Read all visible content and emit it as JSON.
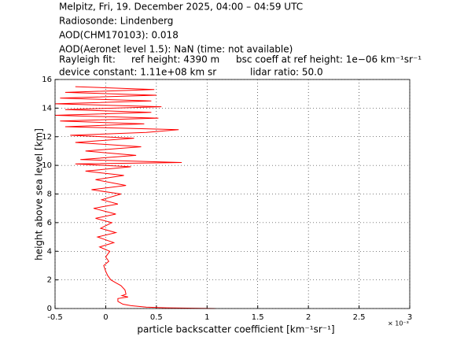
{
  "chart_data": {
    "type": "line",
    "header": [
      "Melpitz, Fri, 19. December 2025, 04:00 – 04:59 UTC",
      "Radiosonde: Lindenberg",
      "AOD(CHM170103): 0.018",
      "AOD(Aeronet level 1.5): NaN   (time: not available)"
    ],
    "rayleigh": [
      "Rayleigh fit:",
      "ref height: 4390 m",
      "bsc coeff at ref height: 1e−06 km⁻¹sr⁻¹"
    ],
    "device": [
      "device constant: 1.11e+08 km sr",
      "lidar ratio: 50.0"
    ],
    "xlabel": "particle backscatter coefficient [km⁻¹sr⁻¹]",
    "ylabel": "height above sea level [km]",
    "x_multiplier": "× 10⁻³",
    "xlim": [
      -0.5,
      3
    ],
    "xticks": [
      -0.5,
      0,
      0.5,
      1,
      1.5,
      2,
      2.5,
      3
    ],
    "ylim": [
      0,
      16
    ],
    "yticks": [
      0,
      2,
      4,
      6,
      8,
      10,
      12,
      14,
      16
    ],
    "grid": true,
    "y": [
      0,
      0.05,
      0.1,
      0.2,
      0.3,
      0.5,
      0.7,
      0.8,
      0.9,
      1.0,
      1.3,
      1.6,
      1.8,
      2.0,
      2.3,
      2.6,
      3.0,
      3.3,
      3.6,
      4.0,
      4.3,
      4.6,
      5.0,
      5.3,
      5.6,
      6.0,
      6.3,
      6.6,
      7.0,
      7.3,
      7.6,
      8.0,
      8.3,
      8.6,
      9.0,
      9.3,
      9.6,
      9.9,
      10.1,
      10.2,
      10.4,
      10.7,
      11.0,
      11.3,
      11.6,
      11.9,
      12.1,
      12.3,
      12.5,
      12.7,
      12.9,
      13.1,
      13.3,
      13.5,
      13.7,
      13.9,
      14.1,
      14.3,
      14.5,
      14.7,
      14.9,
      15.1,
      15.3,
      15.5
    ],
    "series": [
      {
        "color": "#ff0000",
        "values": [
          1.08,
          0.6,
          0.4,
          0.25,
          0.17,
          0.12,
          0.12,
          0.22,
          0.16,
          0.2,
          0.19,
          0.15,
          0.1,
          0.05,
          0.02,
          0.0,
          -0.02,
          0.03,
          0.0,
          0.04,
          -0.06,
          0.08,
          -0.08,
          0.1,
          -0.05,
          0.06,
          -0.1,
          0.1,
          -0.12,
          0.12,
          -0.04,
          0.15,
          -0.14,
          0.2,
          -0.1,
          0.18,
          -0.2,
          0.25,
          -0.3,
          0.75,
          -0.25,
          0.3,
          -0.2,
          0.35,
          -0.3,
          0.28,
          -0.35,
          0.4,
          0.72,
          -0.4,
          0.38,
          -0.45,
          0.52,
          -0.5,
          0.45,
          -0.4,
          0.55,
          -0.5,
          0.45,
          -0.45,
          0.5,
          -0.4,
          0.48,
          -0.3
        ]
      }
    ]
  }
}
